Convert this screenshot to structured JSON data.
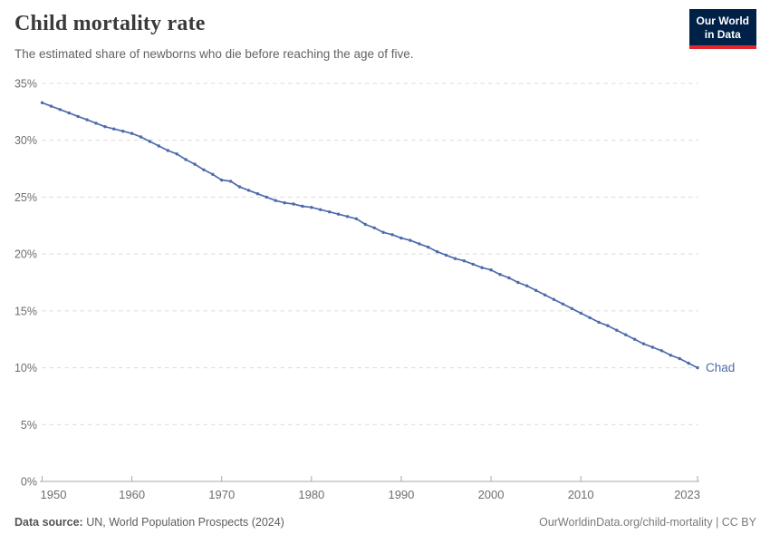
{
  "header": {
    "title": "Child mortality rate",
    "subtitle": "The estimated share of newborns who die before reaching the age of five.",
    "logo": {
      "line1": "Our World",
      "line2": "in Data",
      "bg": "#002147",
      "accent": "#e2262d"
    }
  },
  "footer": {
    "source_label": "Data source:",
    "source_text": "UN, World Population Prospects (2024)",
    "credit": "OurWorldinData.org/child-mortality | CC BY"
  },
  "chart_data": {
    "type": "line",
    "title": "Child mortality rate",
    "subtitle": "The estimated share of newborns who die before reaching the age of five.",
    "xlabel": "",
    "ylabel": "",
    "xlim": [
      1950,
      2023
    ],
    "ylim": [
      0,
      35
    ],
    "grid": "horizontal-dashed",
    "legend_position": "end-of-line-label",
    "x_ticks": [
      1950,
      1960,
      1970,
      1980,
      1990,
      2000,
      2010,
      2023
    ],
    "x_tick_labels": [
      "1950",
      "1960",
      "1970",
      "1980",
      "1990",
      "2000",
      "2010",
      "2023"
    ],
    "y_ticks": [
      0,
      5,
      10,
      15,
      20,
      25,
      30,
      35
    ],
    "y_tick_labels": [
      "0%",
      "5%",
      "10%",
      "15%",
      "20%",
      "25%",
      "30%",
      "35%"
    ],
    "series": [
      {
        "name": "Chad",
        "end_label": "Chad",
        "color": "#4d6bab",
        "x": [
          1950,
          1951,
          1952,
          1953,
          1954,
          1955,
          1956,
          1957,
          1958,
          1959,
          1960,
          1961,
          1962,
          1963,
          1964,
          1965,
          1966,
          1967,
          1968,
          1969,
          1970,
          1971,
          1972,
          1973,
          1974,
          1975,
          1976,
          1977,
          1978,
          1979,
          1980,
          1981,
          1982,
          1983,
          1984,
          1985,
          1986,
          1987,
          1988,
          1989,
          1990,
          1991,
          1992,
          1993,
          1994,
          1995,
          1996,
          1997,
          1998,
          1999,
          2000,
          2001,
          2002,
          2003,
          2004,
          2005,
          2006,
          2007,
          2008,
          2009,
          2010,
          2011,
          2012,
          2013,
          2014,
          2015,
          2016,
          2017,
          2018,
          2019,
          2020,
          2021,
          2022,
          2023
        ],
        "values": [
          33.3,
          33.0,
          32.7,
          32.4,
          32.1,
          31.8,
          31.5,
          31.2,
          31.0,
          30.8,
          30.6,
          30.3,
          29.9,
          29.5,
          29.1,
          28.8,
          28.3,
          27.9,
          27.4,
          27.0,
          26.5,
          26.4,
          25.9,
          25.6,
          25.3,
          25.0,
          24.7,
          24.5,
          24.4,
          24.2,
          24.1,
          23.9,
          23.7,
          23.5,
          23.3,
          23.1,
          22.6,
          22.3,
          21.9,
          21.7,
          21.4,
          21.2,
          20.9,
          20.6,
          20.2,
          19.9,
          19.6,
          19.4,
          19.1,
          18.8,
          18.6,
          18.2,
          17.9,
          17.5,
          17.2,
          16.8,
          16.4,
          16.0,
          15.6,
          15.2,
          14.8,
          14.4,
          14.0,
          13.7,
          13.3,
          12.9,
          12.5,
          12.1,
          11.8,
          11.5,
          11.1,
          10.8,
          10.4,
          10.0
        ]
      }
    ],
    "colors": {
      "gridline": "#dcdcdc",
      "axis": "#a9a9a9",
      "tick_label": "#6e6e6e"
    }
  }
}
